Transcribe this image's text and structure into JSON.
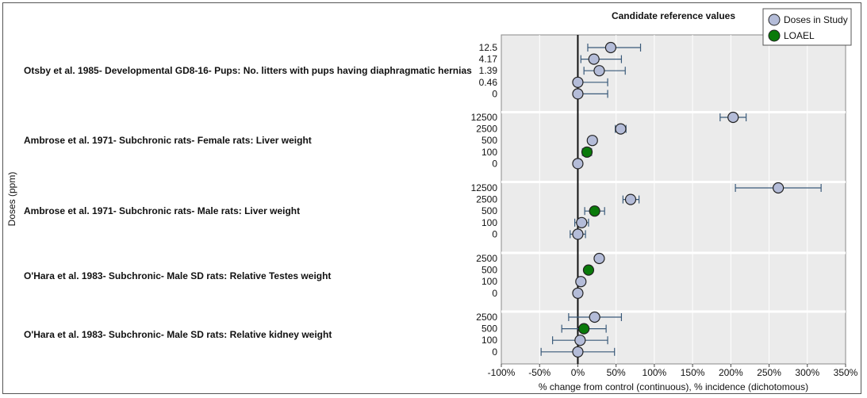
{
  "chart_data": {
    "type": "scatter",
    "title": "Candidate reference values",
    "xlabel": "% change from control (continuous), % incidence (dichotomous)",
    "ylabel": "Doses (ppm)",
    "xlim": [
      -100,
      350
    ],
    "xticks": [
      "-100%",
      "-50%",
      "0%",
      "50%",
      "100%",
      "150%",
      "200%",
      "250%",
      "300%",
      "350%"
    ],
    "xtick_values": [
      -100,
      -50,
      0,
      50,
      100,
      150,
      200,
      250,
      300,
      350
    ],
    "grid": true,
    "legend_position": "top-right",
    "legend": [
      {
        "name": "Doses in Study",
        "color": "#b4bcd8"
      },
      {
        "name": "LOAEL",
        "color": "#0a7a0a"
      }
    ],
    "colors": {
      "dose": "#b4bcd8",
      "loael": "#0a7a0a",
      "errorbar": "#3a5a7a",
      "plot_bg": "#ebebeb"
    },
    "groups": [
      {
        "label": "Otsby et al. 1985- Developmental GD8-16- Pups: No. litters with pups having diaphragmatic hernias",
        "points": [
          {
            "dose": "12.5",
            "value": 43,
            "lo": 13,
            "hi": 82,
            "type": "dose"
          },
          {
            "dose": "4.17",
            "value": 21,
            "lo": 4,
            "hi": 57,
            "type": "dose"
          },
          {
            "dose": "1.39",
            "value": 28,
            "lo": 8,
            "hi": 62,
            "type": "dose"
          },
          {
            "dose": "0.46",
            "value": 0,
            "lo": 0,
            "hi": 39,
            "type": "dose"
          },
          {
            "dose": "0",
            "value": 0,
            "lo": 0,
            "hi": 39,
            "type": "dose"
          }
        ]
      },
      {
        "label": "Ambrose et al. 1971- Subchronic rats- Female rats: Liver weight",
        "points": [
          {
            "dose": "12500",
            "value": 203,
            "lo": 186,
            "hi": 220,
            "type": "dose"
          },
          {
            "dose": "2500",
            "value": 56,
            "lo": 49,
            "hi": 63,
            "type": "dose"
          },
          {
            "dose": "500",
            "value": 19,
            "lo": 16,
            "hi": 22,
            "type": "dose"
          },
          {
            "dose": "100",
            "value": 12,
            "lo": 6,
            "hi": 18,
            "type": "loael"
          },
          {
            "dose": "0",
            "value": 0,
            "lo": -1,
            "hi": 1,
            "type": "dose"
          }
        ]
      },
      {
        "label": "Ambrose et al. 1971- Subchronic rats- Male rats: Liver weight",
        "points": [
          {
            "dose": "12500",
            "value": 262,
            "lo": 206,
            "hi": 318,
            "type": "dose"
          },
          {
            "dose": "2500",
            "value": 69,
            "lo": 59,
            "hi": 80,
            "type": "dose"
          },
          {
            "dose": "500",
            "value": 22,
            "lo": 9,
            "hi": 35,
            "type": "loael"
          },
          {
            "dose": "100",
            "value": 5,
            "lo": -4,
            "hi": 14,
            "type": "dose"
          },
          {
            "dose": "0",
            "value": 0,
            "lo": -10,
            "hi": 10,
            "type": "dose"
          }
        ]
      },
      {
        "label": "O'Hara et al. 1983- Subchronic- Male SD rats: Relative Testes weight",
        "points": [
          {
            "dose": "2500",
            "value": 28,
            "lo": 25,
            "hi": 31,
            "type": "dose"
          },
          {
            "dose": "500",
            "value": 14,
            "lo": 11,
            "hi": 17,
            "type": "loael"
          },
          {
            "dose": "100",
            "value": 4,
            "lo": 2,
            "hi": 6,
            "type": "dose"
          },
          {
            "dose": "0",
            "value": 0,
            "lo": -3,
            "hi": 3,
            "type": "dose"
          }
        ]
      },
      {
        "label": "O'Hara et al. 1983- Subchronic- Male SD rats: Relative kidney weight",
        "points": [
          {
            "dose": "2500",
            "value": 22,
            "lo": -12,
            "hi": 57,
            "type": "dose"
          },
          {
            "dose": "500",
            "value": 8,
            "lo": -21,
            "hi": 37,
            "type": "loael"
          },
          {
            "dose": "100",
            "value": 3,
            "lo": -33,
            "hi": 39,
            "type": "dose"
          },
          {
            "dose": "0",
            "value": 0,
            "lo": -48,
            "hi": 48,
            "type": "dose"
          }
        ]
      }
    ]
  }
}
